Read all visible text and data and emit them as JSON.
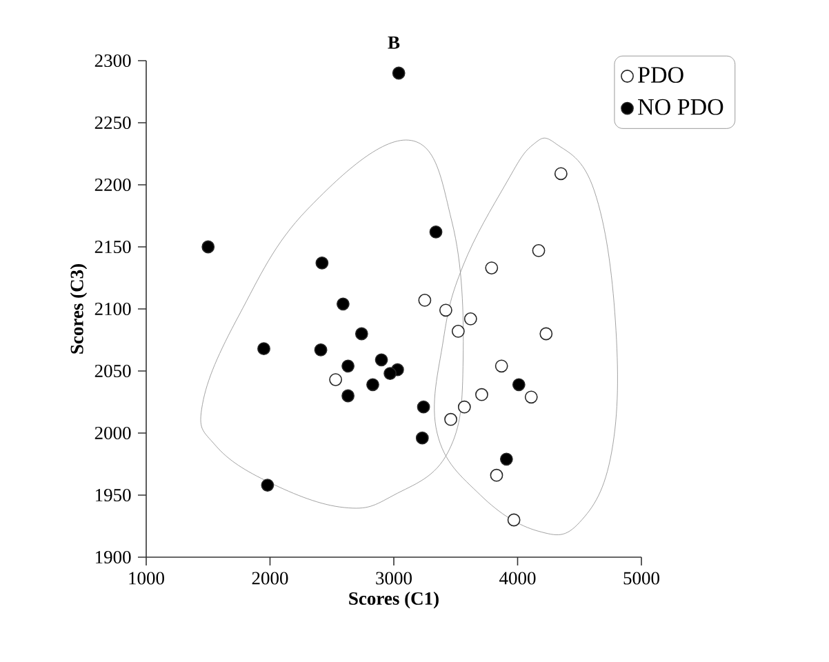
{
  "chart_data": {
    "type": "scatter",
    "title": "B",
    "xlabel": "Scores (C1)",
    "ylabel": "Scores (C3)",
    "xlim": [
      1000,
      5000
    ],
    "xticks": [
      1000,
      2000,
      3000,
      4000,
      5000
    ],
    "ylim": [
      1900,
      2300
    ],
    "yticks": [
      1900,
      1950,
      2000,
      2050,
      2100,
      2150,
      2200,
      2250,
      2300
    ],
    "legend": "right",
    "marker": "circle",
    "grid": false,
    "series": [
      {
        "name": "PDO",
        "color": "#ffffff",
        "x": [
          2530,
          3250,
          3420,
          3520,
          3620,
          3790,
          4350,
          4170,
          4230,
          3870,
          4110,
          3710,
          3570,
          3460,
          3830,
          3970
        ],
        "values": [
          2043,
          2107,
          2099,
          2082,
          2092,
          2133,
          2209,
          2147,
          2080,
          2054,
          2029,
          2031,
          2021,
          2011,
          1966,
          1930
        ]
      },
      {
        "name": "NO PDO",
        "color": "#000000",
        "x": [
          3040,
          1500,
          3340,
          2420,
          2590,
          2740,
          1950,
          2410,
          2630,
          2900,
          3030,
          2970,
          2830,
          2630,
          3240,
          3230,
          1980,
          4010,
          3910
        ],
        "values": [
          2290,
          2150,
          2162,
          2137,
          2104,
          2080,
          2068,
          2067,
          2054,
          2059,
          2051,
          2048,
          2039,
          2030,
          2021,
          1996,
          1958,
          2039,
          1979
        ]
      }
    ]
  }
}
